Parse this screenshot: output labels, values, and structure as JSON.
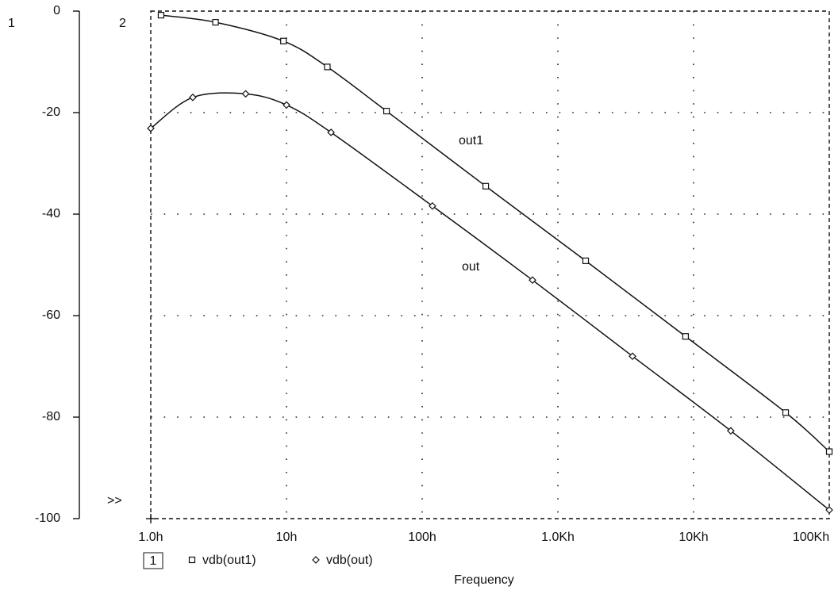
{
  "chart_data": {
    "type": "line",
    "x_label": "Frequency",
    "axis_ids": [
      "1",
      "2"
    ],
    "cursor_marker": ">>",
    "legend_id": "1",
    "x_log": true,
    "grid": true,
    "xlim": [
      1,
      100000
    ],
    "ylim": [
      -100,
      0
    ],
    "xticks": [
      {
        "value": 1,
        "label": "1.0h"
      },
      {
        "value": 10,
        "label": "10h"
      },
      {
        "value": 100,
        "label": "100h"
      },
      {
        "value": 1000,
        "label": "1.0Kh"
      },
      {
        "value": 10000,
        "label": "10Kh"
      },
      {
        "value": 100000,
        "label": "100Kh"
      }
    ],
    "yticks": [
      0,
      -20,
      -40,
      -60,
      -80,
      -100
    ],
    "series": [
      {
        "name": "vdb(out1)",
        "label": "out1",
        "marker": "square",
        "color": "#111111",
        "x": [
          1.19,
          3,
          9.5,
          20,
          54.6,
          294,
          1602,
          8730,
          47700,
          100000
        ],
        "values": [
          -0.8,
          -2.2,
          -5.9,
          -11,
          -19.7,
          -34.5,
          -49.2,
          -64.1,
          -79.1,
          -86.8
        ]
      },
      {
        "name": "vdb(out)",
        "label": "out",
        "marker": "diamond",
        "color": "#111111",
        "x": [
          1,
          2.04,
          5,
          10,
          21.3,
          119,
          650,
          3548,
          18800,
          100000
        ],
        "values": [
          -23.1,
          -17,
          -16.3,
          -18.5,
          -23.9,
          -38.4,
          -53,
          -68,
          -82.7,
          -98.3
        ]
      }
    ]
  }
}
